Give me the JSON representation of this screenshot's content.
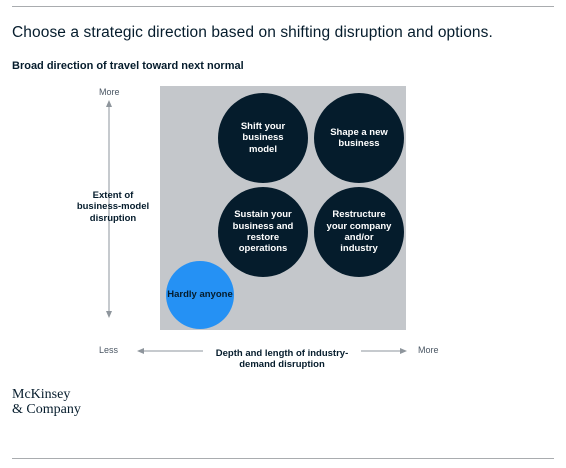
{
  "header": {
    "title": "Choose a strategic direction based on shifting disruption and options.",
    "subtitle": "Broad direction of travel toward next normal"
  },
  "axes": {
    "y_more": "More",
    "y_title": "Extent of business-model disruption",
    "x_less": "Less",
    "x_more": "More",
    "x_title": "Depth and length of industry-demand disruption"
  },
  "quadrants": {
    "top_left": "Shift your business model",
    "top_right": "Shape a new business",
    "bottom_left": "Sustain your business and restore operations",
    "bottom_right": "Restructure your company and/or industry",
    "corner": "Hardly anyone"
  },
  "colors": {
    "navy": "#051c2c",
    "grid": "#c4c7cb",
    "accent_blue": "#2591f4"
  },
  "logo": {
    "line1": "McKinsey",
    "line2": "& Company"
  }
}
